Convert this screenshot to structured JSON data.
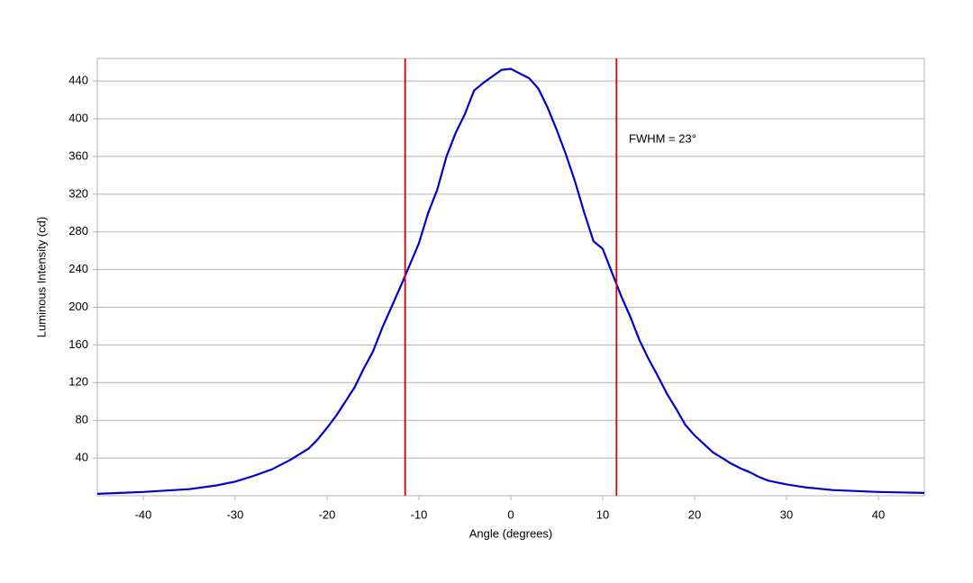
{
  "chart_data": {
    "type": "line",
    "xlabel": "Angle (degrees)",
    "ylabel": "Luminous Intensity (cd)",
    "annotation": "FWHM = 23°",
    "x": [
      -45,
      -40,
      -35,
      -32,
      -30,
      -28,
      -26,
      -24,
      -22,
      -21,
      -20,
      -19,
      -18,
      -17,
      -16,
      -15,
      -14,
      -13,
      -12,
      -11,
      -10,
      -9,
      -8,
      -7,
      -6,
      -5,
      -4,
      -3,
      -2,
      -1,
      0,
      1,
      2,
      3,
      4,
      5,
      6,
      7,
      8,
      9,
      10,
      11,
      12,
      13,
      14,
      15,
      16,
      17,
      18,
      19,
      20,
      21,
      22,
      23,
      24,
      25,
      26,
      27,
      28,
      29,
      30,
      32,
      35,
      40,
      45
    ],
    "series": [
      {
        "name": "Luminous Intensity",
        "color": "#0000cc",
        "values": [
          2,
          4,
          7,
          11,
          15,
          21,
          28,
          38,
          50,
          60,
          72,
          85,
          100,
          115,
          135,
          153,
          178,
          200,
          222,
          245,
          268,
          300,
          325,
          360,
          385,
          405,
          430,
          438,
          445,
          452,
          453,
          448,
          443,
          432,
          412,
          388,
          362,
          333,
          300,
          270,
          262,
          237,
          212,
          190,
          165,
          145,
          127,
          108,
          92,
          75,
          64,
          55,
          46,
          40,
          34,
          29,
          25,
          20,
          16,
          14,
          12,
          9,
          6,
          4,
          3
        ]
      }
    ],
    "vlines": [
      -11.5,
      11.5
    ],
    "vline_color": "#e00000",
    "xlim": [
      -45,
      45
    ],
    "xticks": [
      -40,
      -30,
      -20,
      -10,
      0,
      10,
      20,
      30,
      40
    ],
    "ylim": [
      0,
      464
    ],
    "yticks": [
      40,
      80,
      120,
      160,
      200,
      240,
      280,
      320,
      360,
      400,
      440
    ],
    "grid": true
  }
}
